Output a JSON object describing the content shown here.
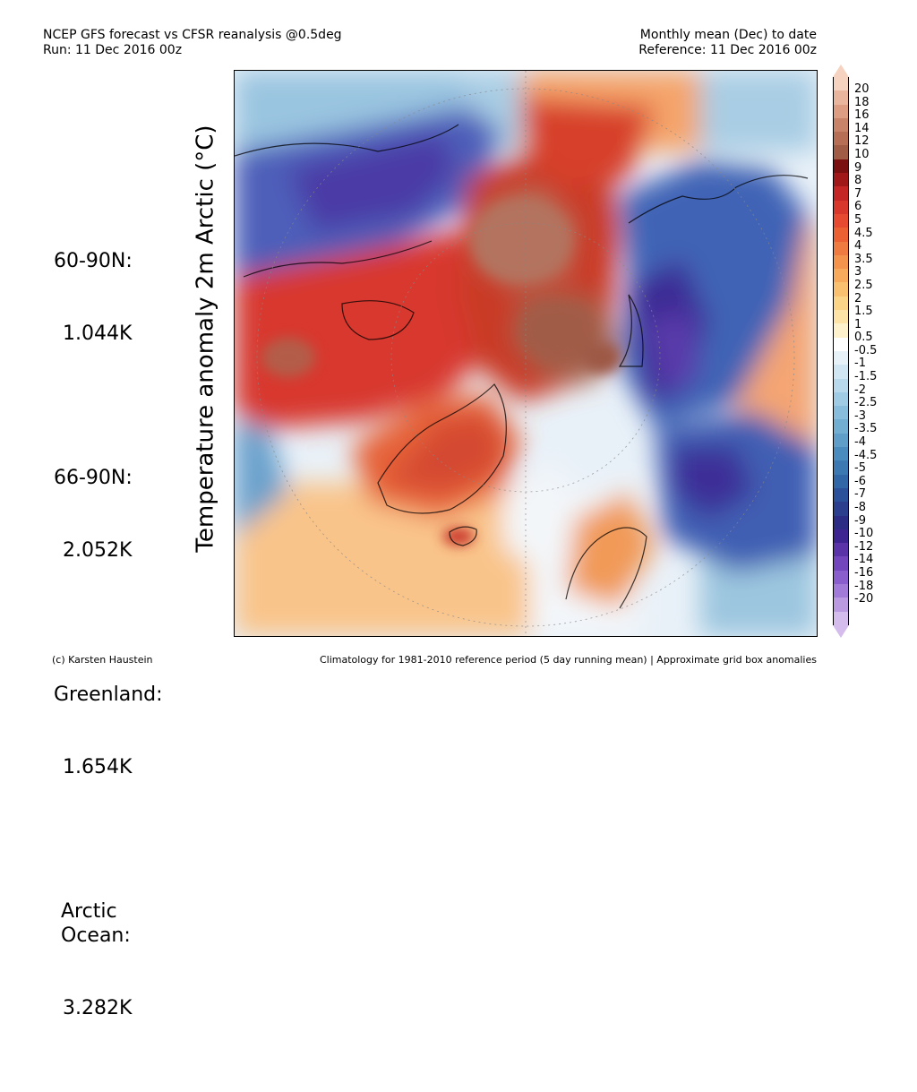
{
  "header": {
    "left_line1": "NCEP GFS forecast vs CFSR reanalysis @0.5deg",
    "left_line2": "Run: 11 Dec 2016 00z",
    "right_line1": "Monthly mean (Dec) to date",
    "right_line2": "Reference: 11 Dec 2016 00z"
  },
  "side_title": "Temperature anomaly 2m Arctic (°C)",
  "stats": [
    {
      "label": "60-90N:",
      "value": "1.044K"
    },
    {
      "label": "66-90N:",
      "value": "2.052K"
    },
    {
      "label": "Greenland:",
      "value": "1.654K"
    },
    {
      "label": "Arctic\nOcean:",
      "value": "3.282K"
    }
  ],
  "legend": {
    "labels": [
      "20",
      "18",
      "16",
      "14",
      "12",
      "10",
      "9",
      "8",
      "7",
      "6",
      "5",
      "4.5",
      "4",
      "3.5",
      "3",
      "2.5",
      "2",
      "1.5",
      "1",
      "0.5",
      "-0.5",
      "-1",
      "-1.5",
      "-2",
      "-2.5",
      "-3",
      "-3.5",
      "-4",
      "-4.5",
      "-5",
      "-6",
      "-7",
      "-8",
      "-9",
      "-10",
      "-12",
      "-14",
      "-16",
      "-18",
      "-20"
    ],
    "colors": [
      "#f6d3c0",
      "#e9b59d",
      "#dd9d82",
      "#c98368",
      "#b66e55",
      "#a05c45",
      "#7a1010",
      "#a01818",
      "#c42626",
      "#d8382c",
      "#e64a30",
      "#ec6134",
      "#f07b40",
      "#f4934c",
      "#f7aa5c",
      "#f9c070",
      "#fbd488",
      "#fde4a6",
      "#fef2cc",
      "#ffffff",
      "#e6f2f8",
      "#d0e6f2",
      "#b8d9ec",
      "#a0cbe4",
      "#88bddb",
      "#72aed2",
      "#5e9ec8",
      "#4b8cbe",
      "#3c79b3",
      "#3166a7",
      "#2b519a",
      "#2b3f8e",
      "#2d2c84",
      "#3d2490",
      "#5a33a8",
      "#7446bd",
      "#8a5ecc",
      "#a27ad8",
      "#bb9ae2",
      "#d4bced"
    ],
    "top_triangle_color": "#f6d3c0",
    "bottom_triangle_color": "#d4bced"
  },
  "footer": {
    "left": "(c) Karsten Haustein",
    "right": "Climatology for 1981-2010 reference period (5 day running mean) | Approximate grid box anomalies"
  }
}
